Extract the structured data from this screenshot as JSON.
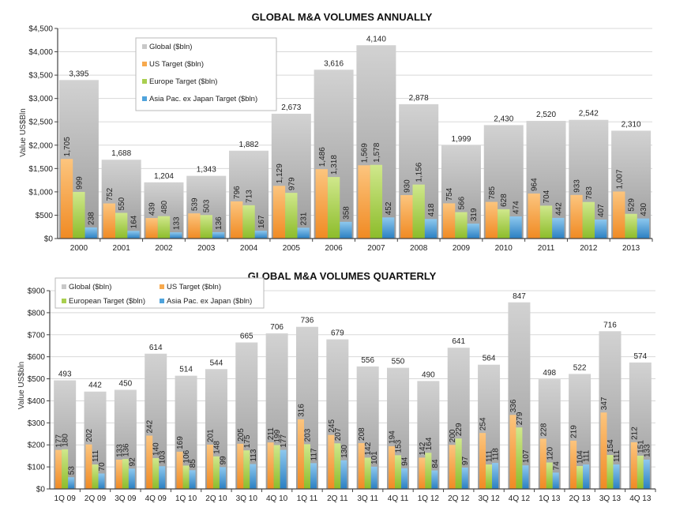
{
  "colors": {
    "global": "#c8c8c8",
    "us": "#f7a94d",
    "europe": "#a9cf4f",
    "asia": "#4fa3dc",
    "grid": "#d8d8d8",
    "axis": "#444444"
  },
  "chart_data": [
    {
      "type": "bar",
      "title": "GLOBAL M&A VOLUMES ANNUALLY",
      "xlabel": "",
      "ylabel": "Value US$Bln",
      "ylim": [
        0,
        4500
      ],
      "yticks": [
        0,
        500,
        1000,
        1500,
        2000,
        2500,
        3000,
        3500,
        4000,
        4500
      ],
      "ytick_labels": [
        "$0",
        "$500",
        "$1,000",
        "$1,500",
        "$2,000",
        "$2,500",
        "$3,000",
        "$3,500",
        "$4,000",
        "$4,500"
      ],
      "grid": true,
      "legend_position": "top-left",
      "legend_layout": "vertical",
      "categories": [
        "2000",
        "2001",
        "2002",
        "2003",
        "2004",
        "2005",
        "2006",
        "2007",
        "2008",
        "2009",
        "2010",
        "2011",
        "2012",
        "2013"
      ],
      "series": [
        {
          "key": "global",
          "name": "Global ($bln)",
          "values": [
            3395,
            1688,
            1204,
            1343,
            1882,
            2673,
            3616,
            4140,
            2878,
            1999,
            2430,
            2520,
            2542,
            2310
          ],
          "labels": [
            "3,395",
            "1,688",
            "1,204",
            "1,343",
            "1,882",
            "2,673",
            "3,616",
            "4,140",
            "2,878",
            "1,999",
            "2,430",
            "2,520",
            "2,542",
            "2,310"
          ]
        },
        {
          "key": "us",
          "name": "US Target ($bln)",
          "values": [
            1705,
            752,
            439,
            539,
            796,
            1129,
            1486,
            1569,
            930,
            754,
            785,
            964,
            933,
            1007
          ],
          "labels": [
            "1,705",
            "752",
            "439",
            "539",
            "796",
            "1,129",
            "1,486",
            "1,569",
            "930",
            "754",
            "785",
            "964",
            "933",
            "1,007"
          ]
        },
        {
          "key": "europe",
          "name": "Europe Target ($bln)",
          "values": [
            999,
            550,
            480,
            503,
            713,
            979,
            1318,
            1578,
            1156,
            566,
            628,
            704,
            783,
            529
          ],
          "labels": [
            "999",
            "550",
            "480",
            "503",
            "713",
            "979",
            "1,318",
            "1,578",
            "1,156",
            "566",
            "628",
            "704",
            "783",
            "529"
          ]
        },
        {
          "key": "asia",
          "name": "Asia Pac. ex Japan Target ($bln)",
          "values": [
            238,
            164,
            133,
            136,
            167,
            231,
            358,
            452,
            418,
            319,
            474,
            442,
            407,
            430
          ],
          "labels": [
            "238",
            "164",
            "133",
            "136",
            "167",
            "231",
            "358",
            "452",
            "418",
            "319",
            "474",
            "442",
            "407",
            "430"
          ]
        }
      ]
    },
    {
      "type": "bar",
      "title": "GLOBAL M&A VOLUMES QUARTERLY",
      "xlabel": "",
      "ylabel": "Value US$bln",
      "ylim": [
        0,
        900
      ],
      "yticks": [
        0,
        100,
        200,
        300,
        400,
        500,
        600,
        700,
        800,
        900
      ],
      "ytick_labels": [
        "$0",
        "$100",
        "$200",
        "$300",
        "$400",
        "$500",
        "$600",
        "$700",
        "$800",
        "$900"
      ],
      "grid": true,
      "legend_position": "top-left",
      "legend_layout": "two-column",
      "categories": [
        "1Q 09",
        "2Q 09",
        "3Q 09",
        "4Q 09",
        "1Q 10",
        "2Q 10",
        "3Q 10",
        "4Q 10",
        "1Q 11",
        "2Q 11",
        "3Q 11",
        "4Q 11",
        "1Q 12",
        "2Q 12",
        "3Q 12",
        "4Q 12",
        "1Q 13",
        "2Q 13",
        "3Q 13",
        "4Q 13"
      ],
      "series": [
        {
          "key": "global",
          "name": "Global ($bln)",
          "values": [
            493,
            442,
            450,
            614,
            514,
            544,
            665,
            706,
            736,
            679,
            556,
            550,
            490,
            641,
            564,
            847,
            498,
            522,
            716,
            574
          ],
          "labels": [
            "493",
            "442",
            "450",
            "614",
            "514",
            "544",
            "665",
            "706",
            "736",
            "679",
            "556",
            "550",
            "490",
            "641",
            "564",
            "847",
            "498",
            "522",
            "716",
            "574"
          ]
        },
        {
          "key": "us",
          "name": "US Target ($bln)",
          "values": [
            177,
            202,
            133,
            242,
            169,
            201,
            205,
            211,
            316,
            245,
            208,
            194,
            142,
            200,
            254,
            336,
            228,
            219,
            347,
            212
          ],
          "labels": [
            "177",
            "202",
            "133",
            "242",
            "169",
            "201",
            "205",
            "211",
            "316",
            "245",
            "208",
            "194",
            "142",
            "200",
            "254",
            "336",
            "228",
            "219",
            "347",
            "212"
          ]
        },
        {
          "key": "europe",
          "name": "European Target ($bln)",
          "values": [
            180,
            111,
            136,
            140,
            106,
            148,
            175,
            199,
            203,
            207,
            142,
            153,
            164,
            229,
            111,
            279,
            120,
            104,
            154,
            151
          ],
          "labels": [
            "180",
            "111",
            "136",
            "140",
            "106",
            "148",
            "175",
            "199",
            "203",
            "207",
            "142",
            "153",
            "164",
            "229",
            "111",
            "279",
            "120",
            "104",
            "154",
            "151"
          ]
        },
        {
          "key": "asia",
          "name": "Asia Pac. ex Japan ($bln)",
          "values": [
            53,
            70,
            92,
            103,
            85,
            99,
            113,
            177,
            117,
            130,
            101,
            94,
            84,
            97,
            118,
            107,
            74,
            111,
            111,
            133
          ],
          "labels": [
            "53",
            "70",
            "92",
            "103",
            "85",
            "99",
            "113",
            "177",
            "117",
            "130",
            "101",
            "94",
            "84",
            "97",
            "118",
            "107",
            "74",
            "111",
            "111",
            "133"
          ]
        }
      ]
    }
  ]
}
